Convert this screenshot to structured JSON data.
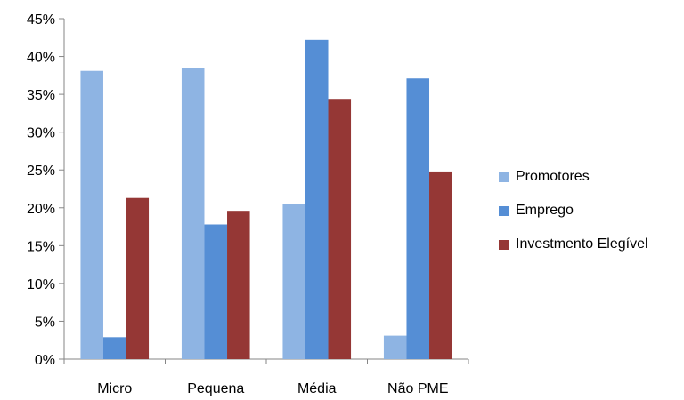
{
  "chart_data": {
    "type": "bar",
    "categories": [
      "Micro",
      "Pequena",
      "Média",
      "Não PME"
    ],
    "series": [
      {
        "name": "Promotores",
        "color": "#8EB4E3",
        "values": [
          38.1,
          38.5,
          20.5,
          3.1
        ]
      },
      {
        "name": "Emprego",
        "color": "#558ED5",
        "values": [
          2.9,
          17.8,
          42.2,
          37.1
        ]
      },
      {
        "name": "Investmento Elegível",
        "color": "#953735",
        "values": [
          21.3,
          19.6,
          34.4,
          24.8
        ]
      }
    ],
    "ylim": [
      0,
      45
    ],
    "yticks": [
      "0%",
      "5%",
      "10%",
      "15%",
      "20%",
      "25%",
      "30%",
      "35%",
      "40%",
      "45%"
    ],
    "grid": false,
    "legend_position": "right"
  }
}
